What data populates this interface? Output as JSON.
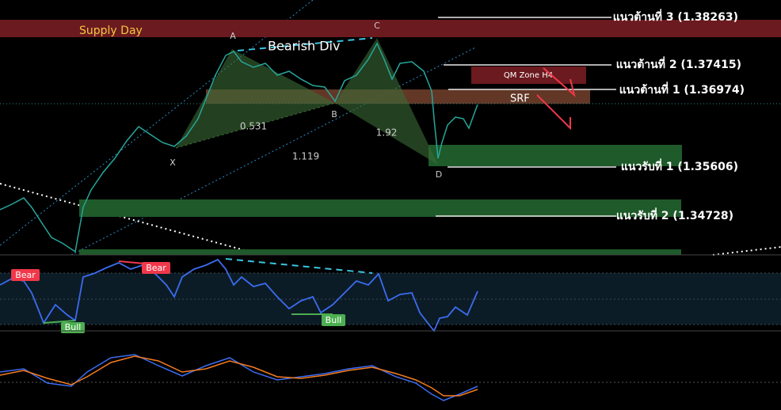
{
  "zones": {
    "supply": "Supply Day",
    "qm": "QM Zone H4",
    "srf": "SRF"
  },
  "annotation": "Bearish Div",
  "levels": [
    "แนวต้านที่ 3 (1.38263)",
    "แนวต้านที่ 2 (1.37415)",
    "แนวต้านที่ 1 (1.36974)",
    "แนวรับที่ 1 (1.35606)",
    "แนวรับที่ 2 (1.34728)"
  ],
  "points": [
    "X",
    "A",
    "B",
    "C",
    "D"
  ],
  "ratios": [
    "0.531",
    "1.119",
    "1.92"
  ],
  "rsi_labels": [
    "Bear",
    "Bear",
    "Bull",
    "Bull"
  ]
}
